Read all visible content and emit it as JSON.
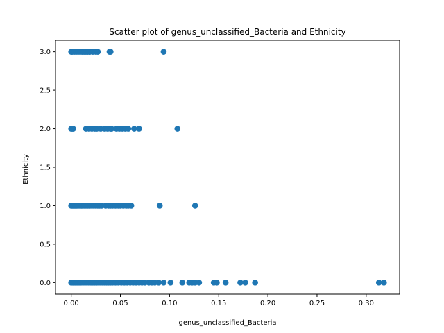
{
  "chart_data": {
    "type": "scatter",
    "title": "Scatter plot of genus_unclassified_Bacteria and Ethnicity",
    "xlabel": "genus_unclassified_Bacteria",
    "ylabel": "Ethnicity",
    "xlim": [
      -0.016,
      0.334
    ],
    "ylim": [
      -0.15,
      3.15
    ],
    "xticks": [
      0.0,
      0.05,
      0.1,
      0.15,
      0.2,
      0.25,
      0.3
    ],
    "xtick_labels": [
      "0.00",
      "0.05",
      "0.10",
      "0.15",
      "0.20",
      "0.25",
      "0.30"
    ],
    "yticks": [
      0.0,
      0.5,
      1.0,
      1.5,
      2.0,
      2.5,
      3.0
    ],
    "ytick_labels": [
      "0.0",
      "0.5",
      "1.0",
      "1.5",
      "2.0",
      "2.5",
      "3.0"
    ],
    "grid": false,
    "marker_color": "#1f77b4",
    "series": [
      {
        "points": [
          [
            0.0,
            3
          ],
          [
            0.001,
            3
          ],
          [
            0.003,
            3
          ],
          [
            0.005,
            3
          ],
          [
            0.007,
            3
          ],
          [
            0.009,
            3
          ],
          [
            0.011,
            3
          ],
          [
            0.013,
            3
          ],
          [
            0.015,
            3
          ],
          [
            0.017,
            3
          ],
          [
            0.019,
            3
          ],
          [
            0.022,
            3
          ],
          [
            0.025,
            3
          ],
          [
            0.027,
            3
          ],
          [
            0.039,
            3
          ],
          [
            0.04,
            3
          ],
          [
            0.094,
            3
          ],
          [
            0.0,
            2
          ],
          [
            0.001,
            2
          ],
          [
            0.002,
            2
          ],
          [
            0.015,
            2
          ],
          [
            0.018,
            2
          ],
          [
            0.021,
            2
          ],
          [
            0.024,
            2
          ],
          [
            0.026,
            2
          ],
          [
            0.03,
            2
          ],
          [
            0.034,
            2
          ],
          [
            0.037,
            2
          ],
          [
            0.04,
            2
          ],
          [
            0.041,
            2
          ],
          [
            0.046,
            2
          ],
          [
            0.049,
            2
          ],
          [
            0.052,
            2
          ],
          [
            0.055,
            2
          ],
          [
            0.058,
            2
          ],
          [
            0.064,
            2
          ],
          [
            0.069,
            2
          ],
          [
            0.108,
            2
          ],
          [
            0.0,
            1
          ],
          [
            0.001,
            1
          ],
          [
            0.002,
            1
          ],
          [
            0.003,
            1
          ],
          [
            0.004,
            1
          ],
          [
            0.005,
            1
          ],
          [
            0.006,
            1
          ],
          [
            0.008,
            1
          ],
          [
            0.01,
            1
          ],
          [
            0.011,
            1
          ],
          [
            0.013,
            1
          ],
          [
            0.015,
            1
          ],
          [
            0.017,
            1
          ],
          [
            0.019,
            1
          ],
          [
            0.021,
            1
          ],
          [
            0.023,
            1
          ],
          [
            0.025,
            1
          ],
          [
            0.027,
            1
          ],
          [
            0.029,
            1
          ],
          [
            0.031,
            1
          ],
          [
            0.035,
            1
          ],
          [
            0.038,
            1
          ],
          [
            0.04,
            1
          ],
          [
            0.042,
            1
          ],
          [
            0.045,
            1
          ],
          [
            0.048,
            1
          ],
          [
            0.05,
            1
          ],
          [
            0.053,
            1
          ],
          [
            0.056,
            1
          ],
          [
            0.058,
            1
          ],
          [
            0.061,
            1
          ],
          [
            0.09,
            1
          ],
          [
            0.126,
            1
          ],
          [
            0.0,
            0
          ],
          [
            0.001,
            0
          ],
          [
            0.002,
            0
          ],
          [
            0.003,
            0
          ],
          [
            0.004,
            0
          ],
          [
            0.005,
            0
          ],
          [
            0.006,
            0
          ],
          [
            0.007,
            0
          ],
          [
            0.008,
            0
          ],
          [
            0.009,
            0
          ],
          [
            0.01,
            0
          ],
          [
            0.012,
            0
          ],
          [
            0.014,
            0
          ],
          [
            0.016,
            0
          ],
          [
            0.018,
            0
          ],
          [
            0.02,
            0
          ],
          [
            0.022,
            0
          ],
          [
            0.024,
            0
          ],
          [
            0.026,
            0
          ],
          [
            0.028,
            0
          ],
          [
            0.03,
            0
          ],
          [
            0.032,
            0
          ],
          [
            0.034,
            0
          ],
          [
            0.036,
            0
          ],
          [
            0.038,
            0
          ],
          [
            0.04,
            0
          ],
          [
            0.042,
            0
          ],
          [
            0.045,
            0
          ],
          [
            0.048,
            0
          ],
          [
            0.051,
            0
          ],
          [
            0.054,
            0
          ],
          [
            0.057,
            0
          ],
          [
            0.06,
            0
          ],
          [
            0.063,
            0
          ],
          [
            0.066,
            0
          ],
          [
            0.069,
            0
          ],
          [
            0.072,
            0
          ],
          [
            0.075,
            0
          ],
          [
            0.079,
            0
          ],
          [
            0.082,
            0
          ],
          [
            0.085,
            0
          ],
          [
            0.089,
            0
          ],
          [
            0.094,
            0
          ],
          [
            0.101,
            0
          ],
          [
            0.113,
            0
          ],
          [
            0.12,
            0
          ],
          [
            0.123,
            0
          ],
          [
            0.126,
            0
          ],
          [
            0.13,
            0
          ],
          [
            0.145,
            0
          ],
          [
            0.148,
            0
          ],
          [
            0.157,
            0
          ],
          [
            0.172,
            0
          ],
          [
            0.177,
            0
          ],
          [
            0.187,
            0
          ],
          [
            0.313,
            0
          ],
          [
            0.318,
            0
          ]
        ]
      }
    ]
  }
}
